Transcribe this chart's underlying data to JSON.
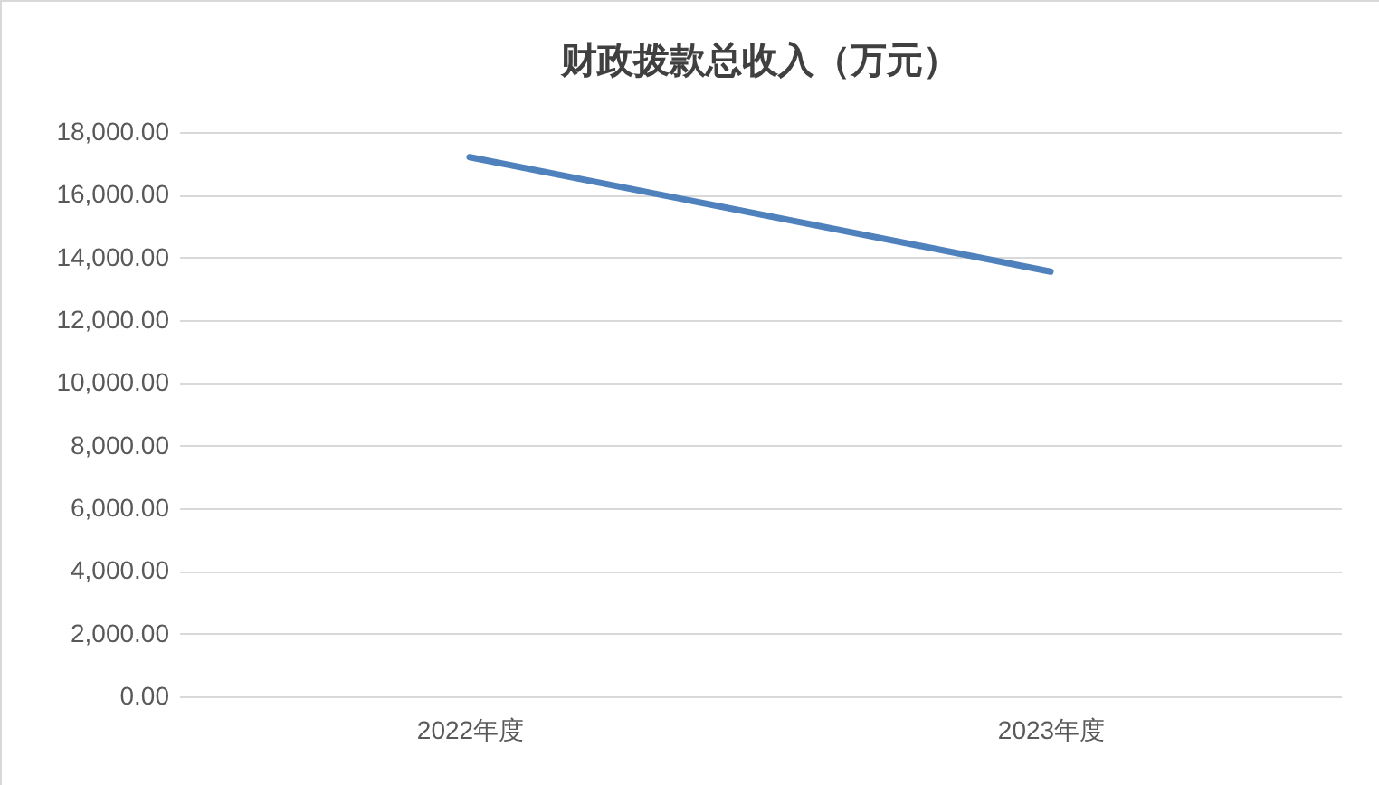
{
  "chart_data": {
    "type": "line",
    "title": "财政拨款总收入（万元）",
    "categories": [
      "2022年度",
      "2023年度"
    ],
    "series": [
      {
        "color": "#4f81bd",
        "values": [
          17200,
          13550
        ]
      }
    ],
    "ylim": [
      0,
      18000
    ],
    "yticks": [
      {
        "value": 0,
        "label": "0.00"
      },
      {
        "value": 2000,
        "label": "2,000.00"
      },
      {
        "value": 4000,
        "label": "4,000.00"
      },
      {
        "value": 6000,
        "label": "6,000.00"
      },
      {
        "value": 8000,
        "label": "8,000.00"
      },
      {
        "value": 10000,
        "label": "10,000.00"
      },
      {
        "value": 12000,
        "label": "12,000.00"
      },
      {
        "value": 14000,
        "label": "14,000.00"
      },
      {
        "value": 16000,
        "label": "16,000.00"
      },
      {
        "value": 18000,
        "label": "18,000.00"
      }
    ],
    "grid": "y",
    "legend": false,
    "marker": "none",
    "line_style": "solid"
  }
}
